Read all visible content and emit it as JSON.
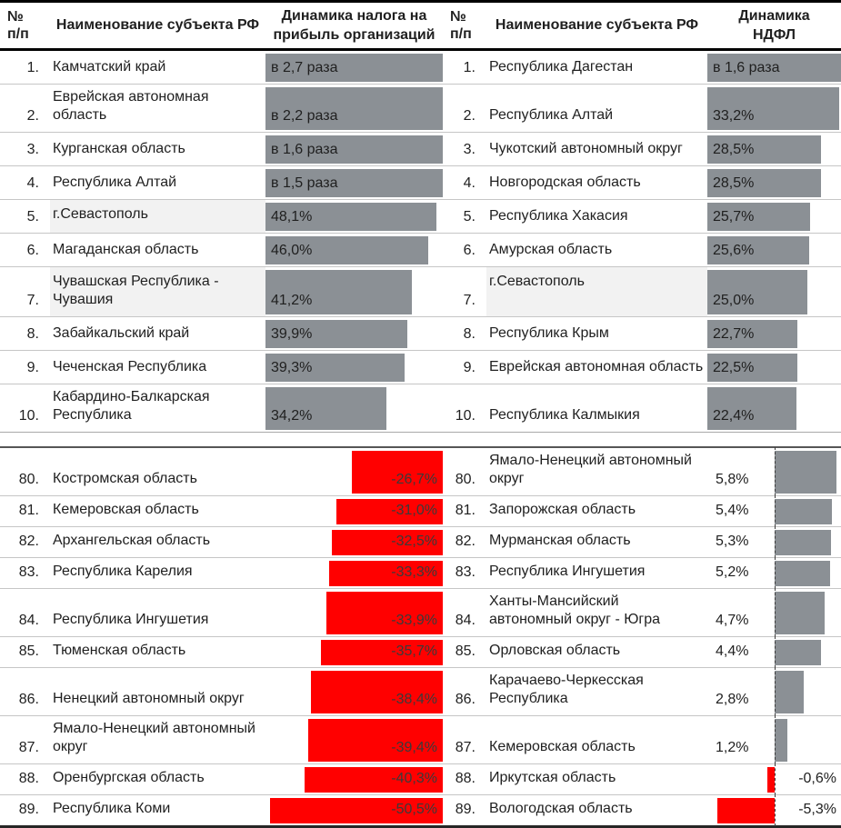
{
  "header": {
    "rank": "№ п/п",
    "name": "Наименование субъекта РФ"
  },
  "colors": {
    "bar_gray": "#8b9095",
    "bar_red": "#ff0000",
    "row_highlight": "#f2f2f2",
    "border_black": "#000000",
    "row_separator": "#c6c6c6"
  },
  "chart_data": [
    {
      "type": "bar",
      "title": "Динамика налога на прибыль организаций",
      "orientation": "horizontal",
      "value_format": "percent, comma decimal; labels 'в N раза' encoded as (N-1)*100",
      "layout": {
        "top_scale": 2.0,
        "bottom_scale": 1.93,
        "bottom_style": "right-anchored-red"
      },
      "top10": {
        "ranks": [
          "1.",
          "2.",
          "3.",
          "4.",
          "5.",
          "6.",
          "7.",
          "8.",
          "9.",
          "10."
        ],
        "regions": [
          "Камчатский край",
          "Еврейская автономная область",
          "Курганская область",
          "Республика Алтай",
          "г.Севастополь",
          "Магаданская область",
          "Чувашская Республика - Чувашия",
          "Забайкальский край",
          "Чеченская Республика",
          "Кабардино-Балкарская Республика"
        ],
        "labels": [
          "в 2,7 раза",
          "в 2,2 раза",
          "в 1,6 раза",
          "в 1,5 раза",
          "48,1%",
          "46,0%",
          "41,2%",
          "39,9%",
          "39,3%",
          "34,2%"
        ],
        "values": [
          170,
          120,
          60,
          50,
          48.1,
          46.0,
          41.2,
          39.9,
          39.3,
          34.2
        ],
        "highlight_rows": [
          4,
          6
        ]
      },
      "bottom10": {
        "ranks": [
          "80.",
          "81.",
          "82.",
          "83.",
          "84.",
          "85.",
          "86.",
          "87.",
          "88.",
          "89."
        ],
        "regions": [
          "Костромская область",
          "Кемеровская область",
          "Архангельская область",
          "Республика Карелия",
          "Республика Ингушетия",
          "Тюменская область",
          "Ненецкий автономный округ",
          "Ямало-Ненецкий автономный округ",
          "Оренбургская область",
          "Республика Коми"
        ],
        "labels": [
          "-26,7%",
          "-31,0%",
          "-32,5%",
          "-33,3%",
          "-33,9%",
          "-35,7%",
          "-38,4%",
          "-39,4%",
          "-40,3%",
          "-50,5%"
        ],
        "values": [
          -26.7,
          -31.0,
          -32.5,
          -33.3,
          -33.9,
          -35.7,
          -38.4,
          -39.4,
          -40.3,
          -50.5
        ],
        "highlight_rows": []
      }
    },
    {
      "type": "bar",
      "title": "Динамика НДФЛ",
      "orientation": "horizontal",
      "value_format": "percent, comma decimal; labels 'в N раза' encoded as (N-1)*100",
      "layout": {
        "top_scale": 2.98,
        "bottom_scale": 8,
        "bottom_style": "diverging-center-baseline",
        "baseline_percent": 50
      },
      "top10": {
        "ranks": [
          "1.",
          "2.",
          "3.",
          "4.",
          "5.",
          "6.",
          "7.",
          "8.",
          "9.",
          "10."
        ],
        "regions": [
          "Республика Дагестан",
          "Республика Алтай",
          "Чукотский автономный округ",
          "Новгородская область",
          "Республика Хакасия",
          "Амурская область",
          "г.Севастополь",
          "Республика Крым",
          "Еврейская автономная область",
          "Республика Калмыкия"
        ],
        "labels": [
          "в 1,6 раза",
          "33,2%",
          "28,5%",
          "28,5%",
          "25,7%",
          "25,6%",
          "25,0%",
          "22,7%",
          "22,5%",
          "22,4%"
        ],
        "values": [
          60,
          33.2,
          28.5,
          28.5,
          25.7,
          25.6,
          25.0,
          22.7,
          22.5,
          22.4
        ],
        "highlight_rows": [
          6
        ]
      },
      "bottom10": {
        "ranks": [
          "80.",
          "81.",
          "82.",
          "83.",
          "84.",
          "85.",
          "86.",
          "87.",
          "88.",
          "89."
        ],
        "regions": [
          "Ямало-Ненецкий автономный округ",
          "Запорожская область",
          "Мурманская область",
          "Республика Ингушетия",
          "Ханты-Мансийский автономный округ - Югра",
          "Орловская область",
          "Карачаево-Черкесская Республика",
          "Кемеровская область",
          "Иркутская область",
          "Вологодская область"
        ],
        "labels": [
          "5,8%",
          "5,4%",
          "5,3%",
          "5,2%",
          "4,7%",
          "4,4%",
          "2,8%",
          "1,2%",
          "-0,6%",
          "-5,3%"
        ],
        "values": [
          5.8,
          5.4,
          5.3,
          5.2,
          4.7,
          4.4,
          2.8,
          1.2,
          -0.6,
          -5.3
        ],
        "highlight_rows": []
      }
    }
  ]
}
